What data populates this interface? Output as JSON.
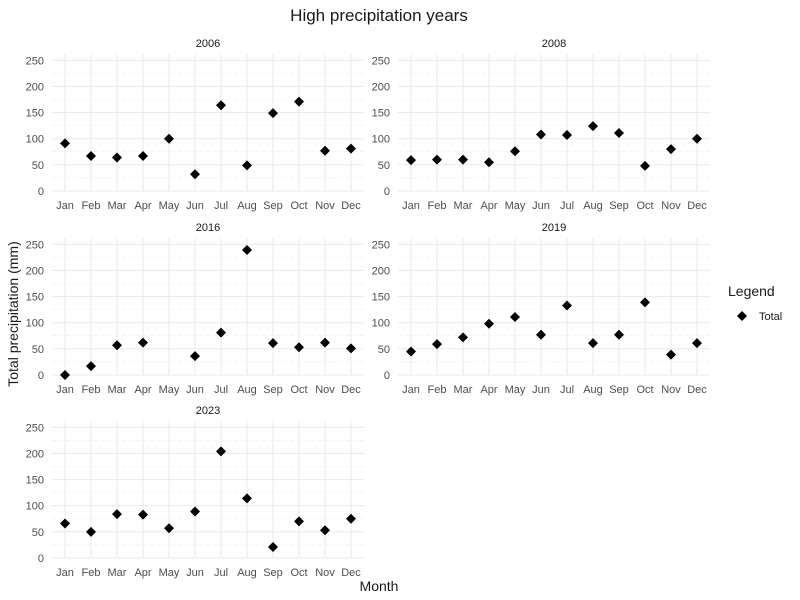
{
  "chart_data": {
    "type": "scatter",
    "title": "High precipitation years",
    "xlabel": "Month",
    "ylabel": "Total precipitation (mm)",
    "categories": [
      "Jan",
      "Feb",
      "Mar",
      "Apr",
      "May",
      "Jun",
      "Jul",
      "Aug",
      "Sep",
      "Oct",
      "Nov",
      "Dec"
    ],
    "yticks": [
      0,
      50,
      100,
      150,
      200,
      250
    ],
    "ylim": [
      0,
      262
    ],
    "grid": true,
    "marker": "diamond",
    "marker_color": "#000000",
    "legend": {
      "title": "Legend",
      "entries": [
        "Total"
      ],
      "position": "right"
    },
    "panels": [
      {
        "year": "2006",
        "values": [
          91,
          67,
          64,
          67,
          100,
          32,
          164,
          49,
          149,
          171,
          77,
          81
        ]
      },
      {
        "year": "2008",
        "values": [
          59,
          60,
          60,
          55,
          76,
          108,
          107,
          124,
          111,
          48,
          80,
          100
        ]
      },
      {
        "year": "2016",
        "values": [
          0,
          17,
          57,
          62,
          null,
          36,
          81,
          239,
          61,
          53,
          62,
          51
        ]
      },
      {
        "year": "2019",
        "values": [
          45,
          59,
          72,
          98,
          111,
          77,
          133,
          61,
          77,
          139,
          39,
          61
        ]
      },
      {
        "year": "2023",
        "values": [
          66,
          50,
          84,
          83,
          57,
          89,
          204,
          114,
          21,
          70,
          53,
          75
        ]
      }
    ]
  }
}
